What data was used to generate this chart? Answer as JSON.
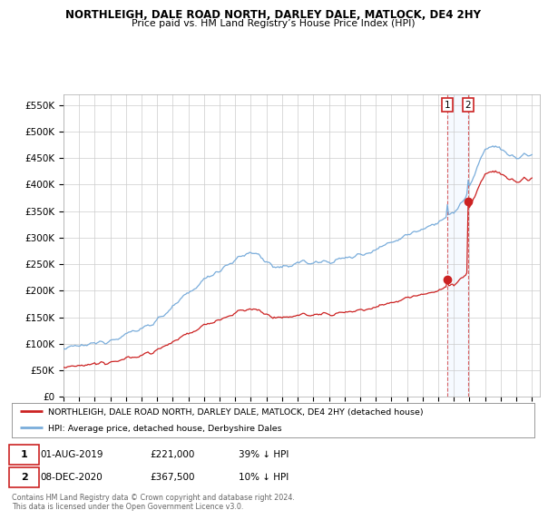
{
  "title": "NORTHLEIGH, DALE ROAD NORTH, DARLEY DALE, MATLOCK, DE4 2HY",
  "subtitle": "Price paid vs. HM Land Registry’s House Price Index (HPI)",
  "ylabel_ticks": [
    "£0",
    "£50K",
    "£100K",
    "£150K",
    "£200K",
    "£250K",
    "£300K",
    "£350K",
    "£400K",
    "£450K",
    "£500K",
    "£550K"
  ],
  "ytick_vals": [
    0,
    50000,
    100000,
    150000,
    200000,
    250000,
    300000,
    350000,
    400000,
    450000,
    500000,
    550000
  ],
  "ylim": [
    0,
    570000
  ],
  "hpi_color": "#7aaddb",
  "price_color": "#cc2222",
  "marker1_price": 221000,
  "marker2_price": 367500,
  "legend_line1": "NORTHLEIGH, DALE ROAD NORTH, DARLEY DALE, MATLOCK, DE4 2HY (detached house)",
  "legend_line2": "HPI: Average price, detached house, Derbyshire Dales",
  "footer": "Contains HM Land Registry data © Crown copyright and database right 2024.\nThis data is licensed under the Open Government Licence v3.0.",
  "bg_color": "#ffffff",
  "grid_color": "#cccccc",
  "shade_color": "#ddeeff",
  "sale1_date": "01-AUG-2019",
  "sale1_price_str": "£221,000",
  "sale1_pct": "39% ↓ HPI",
  "sale2_date": "08-DEC-2020",
  "sale2_price_str": "£367,500",
  "sale2_pct": "10% ↓ HPI"
}
